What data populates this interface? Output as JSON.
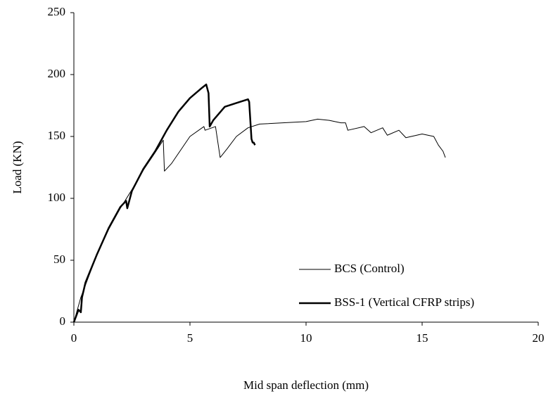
{
  "chart_data": {
    "type": "line",
    "xlabel": "Mid span deflection (mm)",
    "ylabel": "Load (KN)",
    "xlim": [
      0,
      20
    ],
    "xticks": [
      0,
      5,
      10,
      15,
      20
    ],
    "ylim": [
      0,
      250
    ],
    "yticks": [
      0,
      50,
      100,
      150,
      200,
      250
    ],
    "legend": "lower right",
    "series": [
      {
        "name": "BCS (Control)",
        "color": "#000000",
        "line_width": 1,
        "x": [
          0,
          0.3,
          0.5,
          1,
          1.5,
          2,
          2.5,
          3,
          3.5,
          3.85,
          3.9,
          4.2,
          5,
          5.6,
          5.65,
          6.1,
          6.3,
          6.6,
          7,
          7.5,
          8,
          9,
          10,
          10.5,
          11,
          11.5,
          11.7,
          11.8,
          12.5,
          12.8,
          13.3,
          13.5,
          14,
          14.3,
          15,
          15.5,
          15.7,
          15.9,
          16
        ],
        "values": [
          0,
          20,
          30,
          55,
          75,
          92,
          107,
          123,
          137,
          147,
          122,
          128,
          150,
          158,
          155,
          158,
          133,
          140,
          150,
          157,
          160,
          161,
          162,
          164,
          163,
          161,
          161,
          155,
          158,
          153,
          157,
          151,
          155,
          149,
          152,
          150,
          143,
          138,
          133
        ]
      },
      {
        "name": "BSS-1 (Vertical CFRP strips)",
        "color": "#000000",
        "line_width": 2.5,
        "x": [
          0,
          0.2,
          0.3,
          0.35,
          0.5,
          1,
          1.5,
          2,
          2.25,
          2.3,
          2.5,
          3,
          3.5,
          4,
          4.5,
          5,
          5.5,
          5.7,
          5.8,
          5.85,
          6,
          6.5,
          7,
          7.5,
          7.55,
          7.65,
          7.7,
          7.75,
          7.8
        ],
        "values": [
          0,
          10,
          8,
          20,
          32,
          55,
          76,
          93,
          98,
          92,
          106,
          124,
          138,
          155,
          170,
          181,
          189,
          192,
          185,
          158,
          163,
          174,
          177,
          180,
          178,
          148,
          145,
          145,
          143
        ]
      }
    ]
  }
}
